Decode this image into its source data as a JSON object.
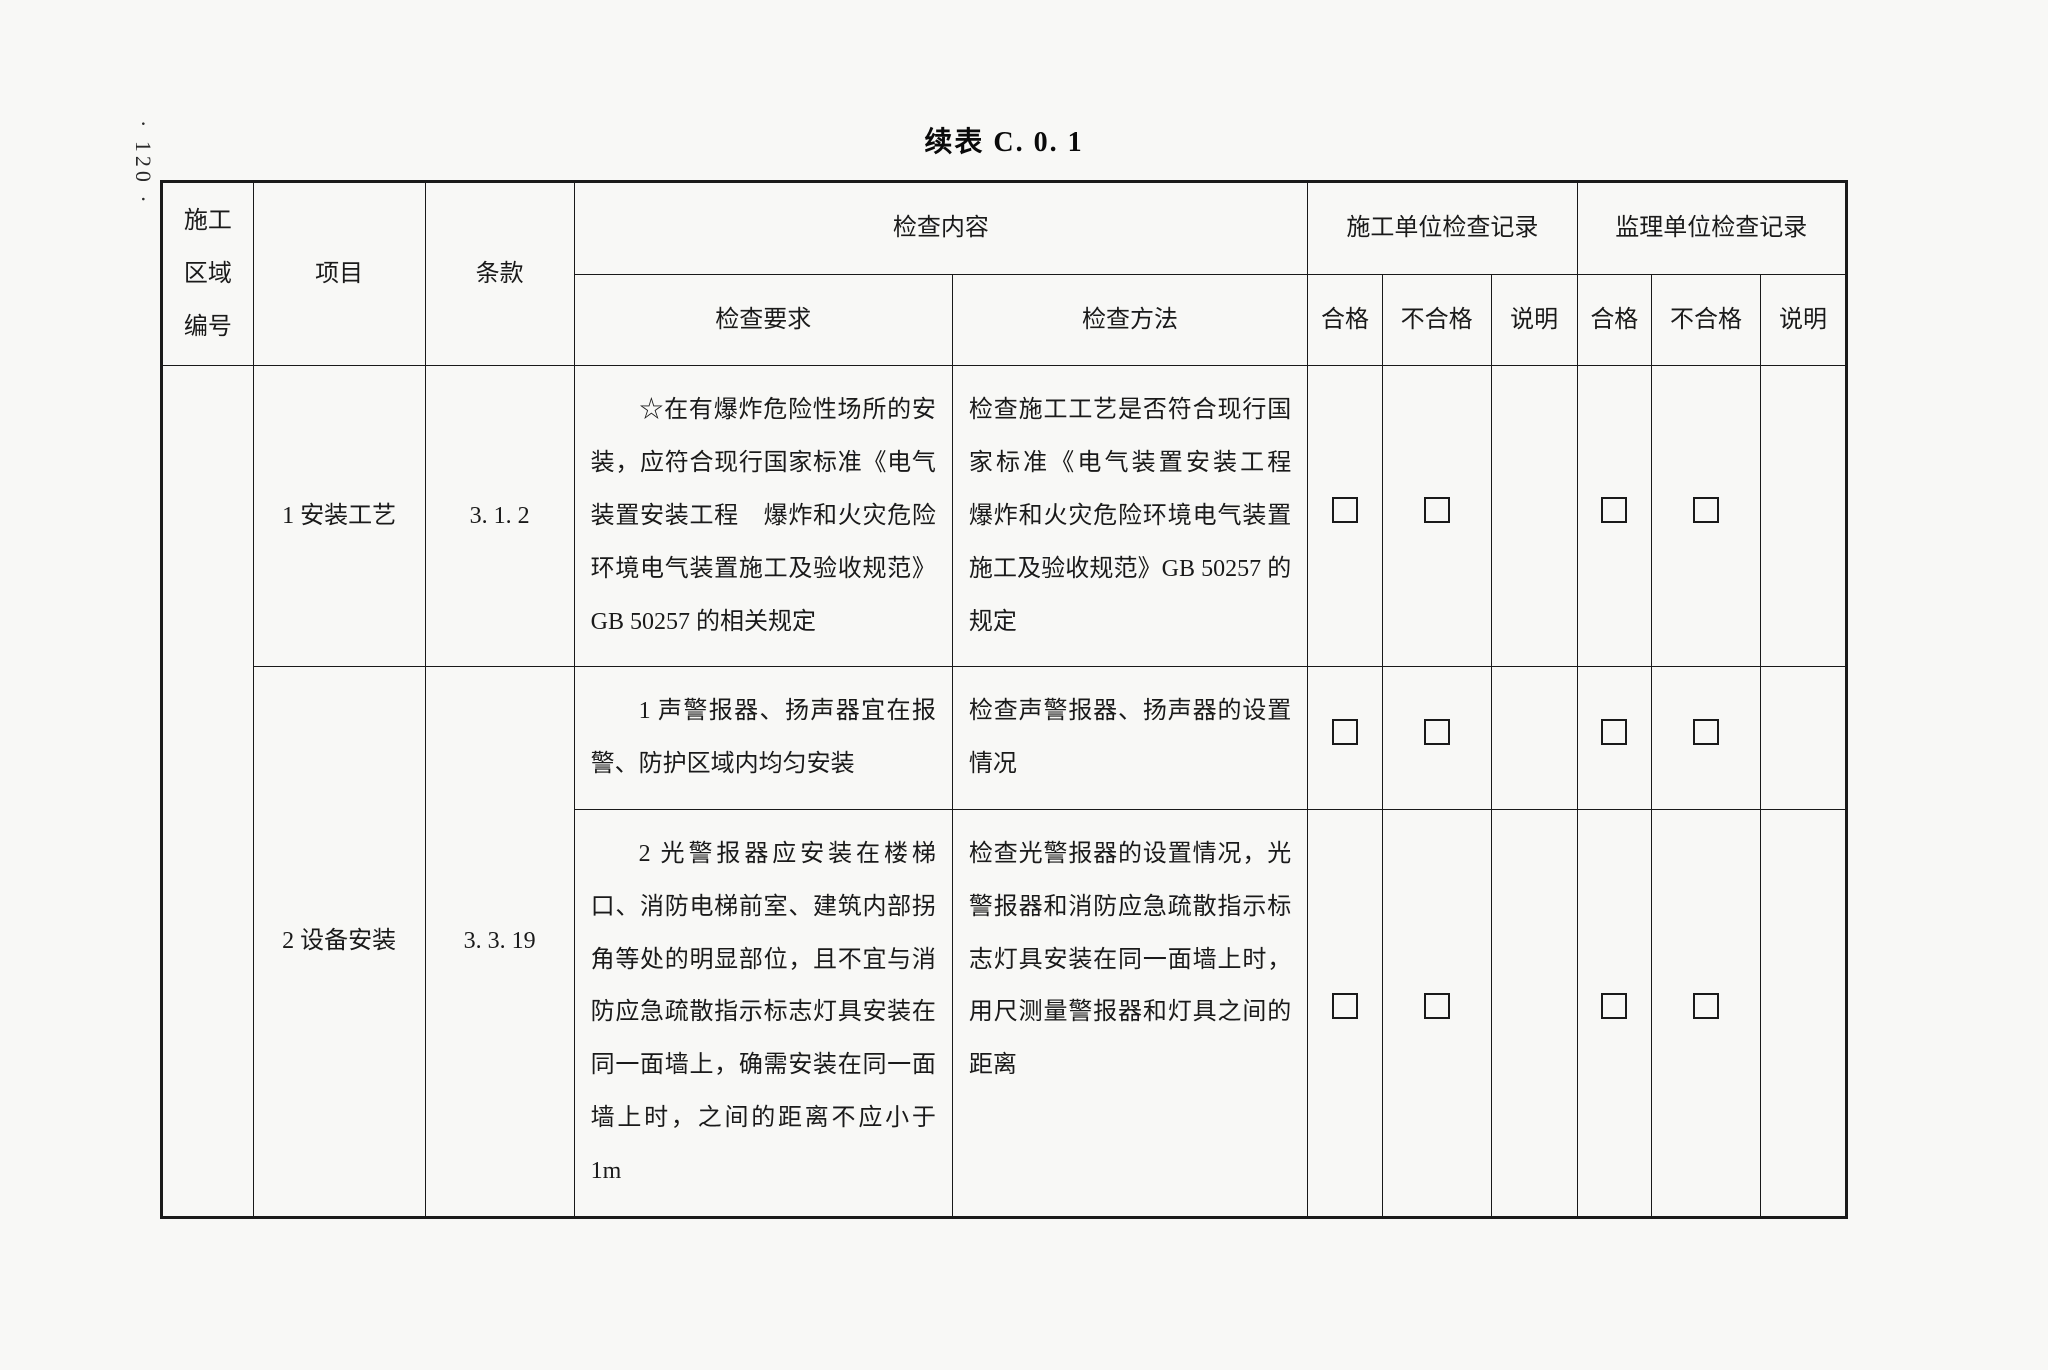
{
  "page_number": "· 120 ·",
  "title": "续表 C. 0. 1",
  "headers": {
    "area_no": "施工区域编号",
    "item": "项目",
    "clause": "条款",
    "inspection_content": "检查内容",
    "construction_unit": "施工单位检查记录",
    "supervision_unit": "监理单位检查记录",
    "requirement": "检查要求",
    "method": "检查方法",
    "pass": "合格",
    "fail": "不合格",
    "note": "说明"
  },
  "rows": [
    {
      "item": "1 安装工艺",
      "clause": "3. 1. 2",
      "requirement": "☆在有爆炸危险性场所的安装，应符合现行国家标准《电气装置安装工程　爆炸和火灾危险环境电气装置施工及验收规范》GB 50257 的相关规定",
      "method": "检查施工工艺是否符合现行国家标准《电气装置安装工程　爆炸和火灾危险环境电气装置施工及验收规范》GB 50257 的规定"
    },
    {
      "item": "2 设备安装",
      "clause": "3. 3. 19",
      "sub": [
        {
          "requirement": "1 声警报器、扬声器宜在报警、防护区域内均匀安装",
          "method": "检查声警报器、扬声器的设置情况"
        },
        {
          "requirement": "2 光警报器应安装在楼梯口、消防电梯前室、建筑内部拐角等处的明显部位，且不宜与消防应急疏散指示标志灯具安装在同一面墙上，确需安装在同一面墙上时，之间的距离不应小于 1m",
          "method": "检查光警报器的设置情况，光警报器和消防应急疏散指示标志灯具安装在同一面墙上时，用尺测量警报器和灯具之间的距离"
        }
      ]
    }
  ],
  "styling": {
    "background_color": "#f8f8f6",
    "border_color": "#1a1a1a",
    "text_color": "#1a1a1a",
    "font_family": "SimSun",
    "title_fontsize": 28,
    "cell_fontsize": 24,
    "outer_border_width": 3,
    "inner_border_width": 1.5,
    "line_height": 2.2,
    "columns": {
      "area": 80,
      "item": 150,
      "clause": 130,
      "req": 330,
      "method": 310,
      "pass": 65,
      "fail": 95,
      "note": 75
    },
    "checkbox_size": 26
  }
}
